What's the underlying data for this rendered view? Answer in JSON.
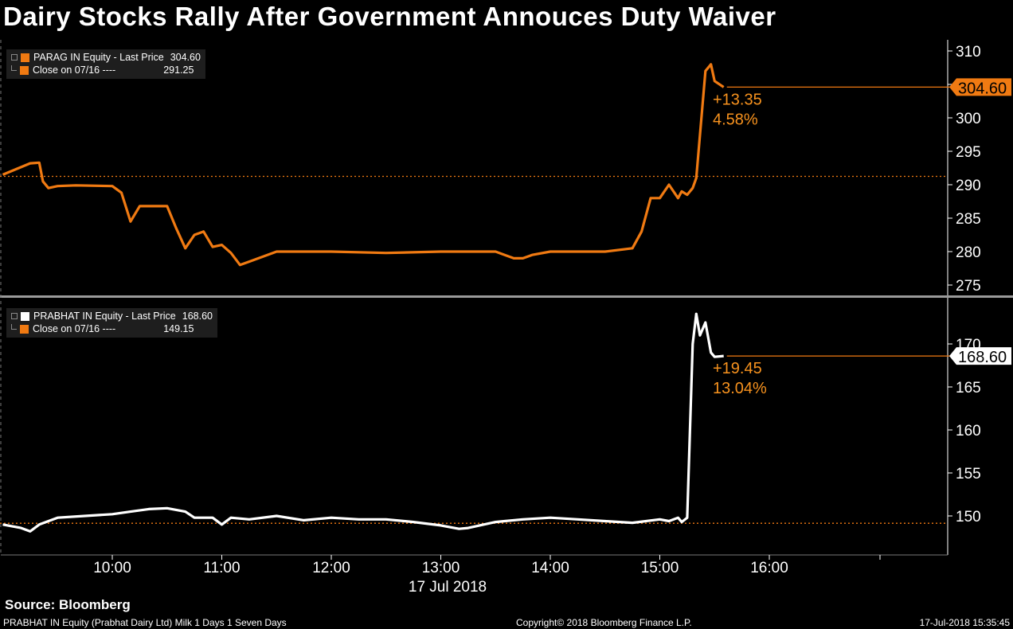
{
  "title": "Dairy Stocks Rally After Government Annouces Duty Waiver",
  "source": "Source: Bloomberg",
  "footer": {
    "left": "PRABHAT IN Equity (Prabhat Dairy Ltd) Milk 1 Days 1 Seven Days",
    "center": "Copyright© 2018 Bloomberg Finance L.P.",
    "right": "17-Jul-2018 15:35:45"
  },
  "colors": {
    "orange": "#f07a12",
    "white": "#ffffff",
    "axis": "#ffffff",
    "label": "#f7921e"
  },
  "chart_data": [
    {
      "type": "line",
      "name": "top-panel",
      "legend": {
        "line1_label": "PARAG IN Equity  - Last Price",
        "line1_value": "304.60",
        "line2_label": "Close on 07/16 ----",
        "line2_value": "291.25"
      },
      "last_price_label": "304.60",
      "change": "+13.35",
      "change_pct": "4.58%",
      "close_prev": 291.25,
      "last": 304.6,
      "ylim": [
        274,
        311
      ],
      "yticks": [
        275,
        280,
        285,
        290,
        295,
        300,
        305,
        310
      ],
      "ytick_labels": [
        "275",
        "280",
        "285",
        "290",
        "295",
        "300",
        "",
        "310"
      ],
      "series": [
        {
          "color": "#f07a12",
          "x": [
            "09:00",
            "09:15",
            "09:20",
            "09:22",
            "09:25",
            "09:30",
            "09:40",
            "10:00",
            "10:05",
            "10:10",
            "10:15",
            "10:30",
            "10:35",
            "10:40",
            "10:45",
            "10:50",
            "10:55",
            "11:00",
            "11:05",
            "11:10",
            "11:15",
            "11:30",
            "12:00",
            "12:30",
            "13:00",
            "13:30",
            "13:40",
            "13:45",
            "13:50",
            "14:00",
            "14:30",
            "14:45",
            "14:50",
            "14:55",
            "15:00",
            "15:05",
            "15:10",
            "15:12",
            "15:15",
            "15:18",
            "15:20",
            "15:25",
            "15:28",
            "15:30",
            "15:35"
          ],
          "y": [
            291.5,
            293.2,
            293.3,
            290.5,
            289.5,
            289.8,
            289.9,
            289.8,
            288.8,
            284.5,
            286.8,
            286.8,
            283.5,
            280.5,
            282.5,
            283,
            280.7,
            281,
            279.8,
            278,
            278.5,
            280,
            280,
            279.8,
            280,
            280,
            279,
            279,
            279.5,
            280,
            280,
            280.5,
            283,
            288,
            288,
            290,
            288,
            289,
            288.5,
            289.5,
            291,
            307,
            308,
            305.5,
            304.6
          ]
        }
      ]
    },
    {
      "type": "line",
      "name": "bottom-panel",
      "legend": {
        "line1_label": "PRABHAT IN Equity  - Last Price",
        "line1_value": "168.60",
        "line2_label": "Close on 07/16 ----",
        "line2_value": "149.15"
      },
      "last_price_label": "168.60",
      "change": "+19.45",
      "change_pct": "13.04%",
      "close_prev": 149.15,
      "last": 168.6,
      "ylim": [
        146,
        174
      ],
      "yticks": [
        150,
        155,
        160,
        165,
        170
      ],
      "ytick_labels": [
        "150",
        "155",
        "160",
        "165",
        "170"
      ],
      "series": [
        {
          "color": "#ffffff",
          "x": [
            "09:00",
            "09:10",
            "09:15",
            "09:20",
            "09:30",
            "09:45",
            "10:00",
            "10:10",
            "10:20",
            "10:30",
            "10:40",
            "10:45",
            "10:55",
            "11:00",
            "11:05",
            "11:15",
            "11:30",
            "11:45",
            "12:00",
            "12:15",
            "12:30",
            "12:45",
            "13:00",
            "13:10",
            "13:15",
            "13:30",
            "13:45",
            "14:00",
            "14:15",
            "14:30",
            "14:45",
            "15:00",
            "15:05",
            "15:10",
            "15:12",
            "15:15",
            "15:18",
            "15:20",
            "15:22",
            "15:25",
            "15:28",
            "15:30",
            "15:35"
          ],
          "y": [
            149,
            148.6,
            148.2,
            149,
            149.8,
            150,
            150.2,
            150.5,
            150.8,
            150.9,
            150.5,
            149.8,
            149.8,
            149,
            149.8,
            149.6,
            150,
            149.5,
            149.8,
            149.6,
            149.6,
            149.3,
            148.9,
            148.5,
            148.6,
            149.3,
            149.6,
            149.8,
            149.6,
            149.4,
            149.2,
            149.6,
            149.4,
            149.8,
            149.3,
            149.8,
            170,
            173.5,
            171,
            172.5,
            169,
            168.5,
            168.6
          ]
        }
      ]
    }
  ],
  "xaxis": {
    "ticks": [
      "10:00",
      "11:00",
      "12:00",
      "13:00",
      "14:00",
      "15:00",
      "16:00"
    ],
    "date_label": "17 Jul 2018"
  }
}
